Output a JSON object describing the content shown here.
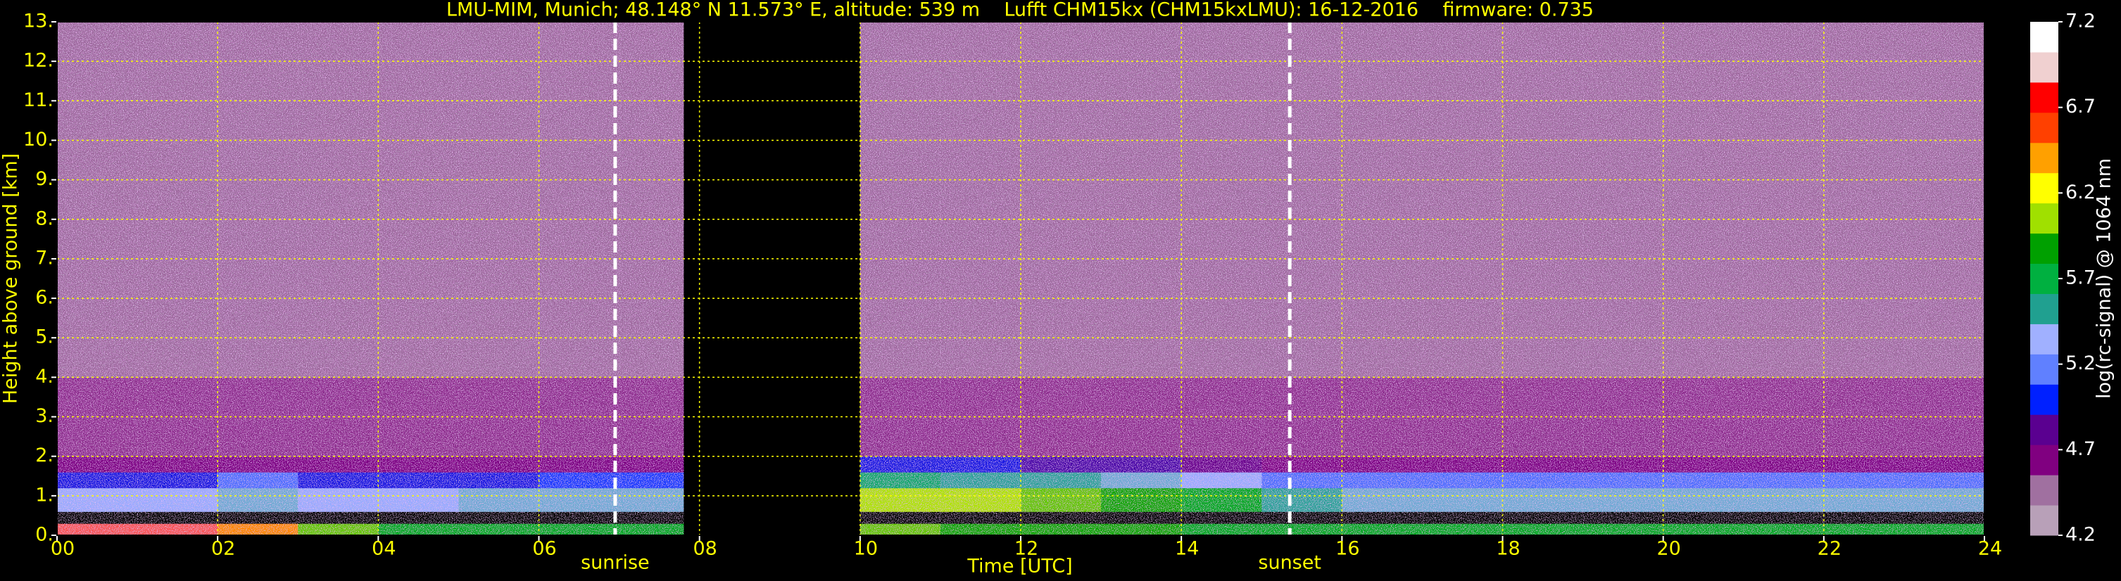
{
  "chart_data": {
    "type": "heatmap",
    "title": "LMU-MIM, Munich; 48.148° N 11.573° E, altitude: 539 m    Lufft CHM15kx (CHM15kxLMU): 16-12-2016    firmware: 0.735",
    "x_label": "Time [UTC]",
    "y_label": "Height above ground [km]",
    "colorbar_label": "log(rc-signal) @ 1064 nm",
    "xbins": [
      0,
      1,
      2,
      3,
      4,
      5,
      6,
      7,
      7.8,
      10,
      11,
      12,
      13,
      14,
      15,
      16,
      17,
      18,
      19,
      20,
      21,
      22,
      23,
      24
    ],
    "ybins": [
      0,
      0.3,
      0.6,
      1.2,
      1.6,
      2,
      4,
      13
    ],
    "z": [
      [
        6.9,
        6.9,
        6.5,
        6.0,
        5.8,
        5.8,
        5.8,
        5.8,
        null,
        6.0,
        5.9,
        5.9,
        5.9,
        5.8,
        5.8,
        5.8,
        5.8,
        5.8,
        5.8,
        5.8,
        5.8,
        5.8,
        5.8
      ],
      [
        4.0,
        4.0,
        4.0,
        4.0,
        4.0,
        4.0,
        4.0,
        4.0,
        null,
        4.0,
        4.0,
        4.0,
        4.0,
        4.0,
        4.0,
        4.0,
        4.0,
        4.0,
        4.0,
        4.0,
        4.0,
        4.0,
        4.0
      ],
      [
        5.3,
        5.3,
        5.4,
        5.3,
        5.3,
        5.4,
        5.4,
        5.4,
        null,
        6.1,
        6.1,
        6.0,
        5.9,
        5.8,
        5.5,
        5.4,
        5.4,
        5.4,
        5.4,
        5.4,
        5.4,
        5.4,
        5.4
      ],
      [
        4.9,
        4.9,
        5.1,
        4.9,
        4.9,
        4.9,
        5.0,
        5.0,
        null,
        5.6,
        5.5,
        5.5,
        5.4,
        5.3,
        5.1,
        5.1,
        5.1,
        5.1,
        5.1,
        5.1,
        5.1,
        5.1,
        5.1
      ],
      [
        4.6,
        4.6,
        4.6,
        4.6,
        4.6,
        4.6,
        4.6,
        4.6,
        null,
        4.9,
        4.9,
        4.8,
        4.8,
        4.7,
        4.6,
        4.6,
        4.6,
        4.6,
        4.6,
        4.6,
        4.6,
        4.6,
        4.6
      ],
      [
        4.5,
        4.5,
        4.5,
        4.5,
        4.5,
        4.5,
        4.5,
        4.5,
        null,
        4.5,
        4.5,
        4.5,
        4.5,
        4.5,
        4.5,
        4.5,
        4.5,
        4.5,
        4.5,
        4.5,
        4.5,
        4.5,
        4.5
      ],
      [
        4.4,
        4.4,
        4.4,
        4.4,
        4.4,
        4.4,
        4.4,
        4.4,
        null,
        4.4,
        4.4,
        4.4,
        4.4,
        4.4,
        4.4,
        4.4,
        4.4,
        4.4,
        4.4,
        4.4,
        4.4,
        4.4,
        4.4
      ]
    ],
    "xlim": [
      0,
      24
    ],
    "ylim": [
      0,
      13
    ],
    "zlim": [
      4.2,
      7.2
    ],
    "xticks": [
      {
        "value": 0,
        "label": "00"
      },
      {
        "value": 2,
        "label": "02"
      },
      {
        "value": 4,
        "label": "04"
      },
      {
        "value": 6,
        "label": "06"
      },
      {
        "value": 8,
        "label": "08"
      },
      {
        "value": 10,
        "label": "10"
      },
      {
        "value": 12,
        "label": "12"
      },
      {
        "value": 14,
        "label": "14"
      },
      {
        "value": 16,
        "label": "16"
      },
      {
        "value": 18,
        "label": "18"
      },
      {
        "value": 20,
        "label": "20"
      },
      {
        "value": 22,
        "label": "22"
      },
      {
        "value": 24,
        "label": "24"
      }
    ],
    "yticks": [
      {
        "value": 0,
        "label": "0."
      },
      {
        "value": 1,
        "label": "1."
      },
      {
        "value": 2,
        "label": "2."
      },
      {
        "value": 3,
        "label": "3."
      },
      {
        "value": 4,
        "label": "4."
      },
      {
        "value": 5,
        "label": "5."
      },
      {
        "value": 6,
        "label": "6."
      },
      {
        "value": 7,
        "label": "7."
      },
      {
        "value": 8,
        "label": "8."
      },
      {
        "value": 9,
        "label": "9."
      },
      {
        "value": 10,
        "label": "10."
      },
      {
        "value": 11,
        "label": "11."
      },
      {
        "value": 12,
        "label": "12."
      },
      {
        "value": 13,
        "label": "13."
      }
    ],
    "zticks": [
      4.2,
      4.7,
      5.2,
      5.7,
      6.2,
      6.7,
      7.2
    ],
    "colors": [
      "#b8a0b8",
      "#a070a0",
      "#800080",
      "#5a0090",
      "#0020ff",
      "#6080ff",
      "#a0b0ff",
      "#20a090",
      "#00b040",
      "#00a000",
      "#a0e000",
      "#ffff00",
      "#ffa000",
      "#ff4000",
      "#ff0000",
      "#f0d0d0",
      "#ffffff"
    ],
    "grid": true,
    "grid_color": "#ffff00",
    "annotations": [
      {
        "x": 6.95,
        "label": "sunrise"
      },
      {
        "x": 15.35,
        "label": "sunset"
      }
    ]
  }
}
